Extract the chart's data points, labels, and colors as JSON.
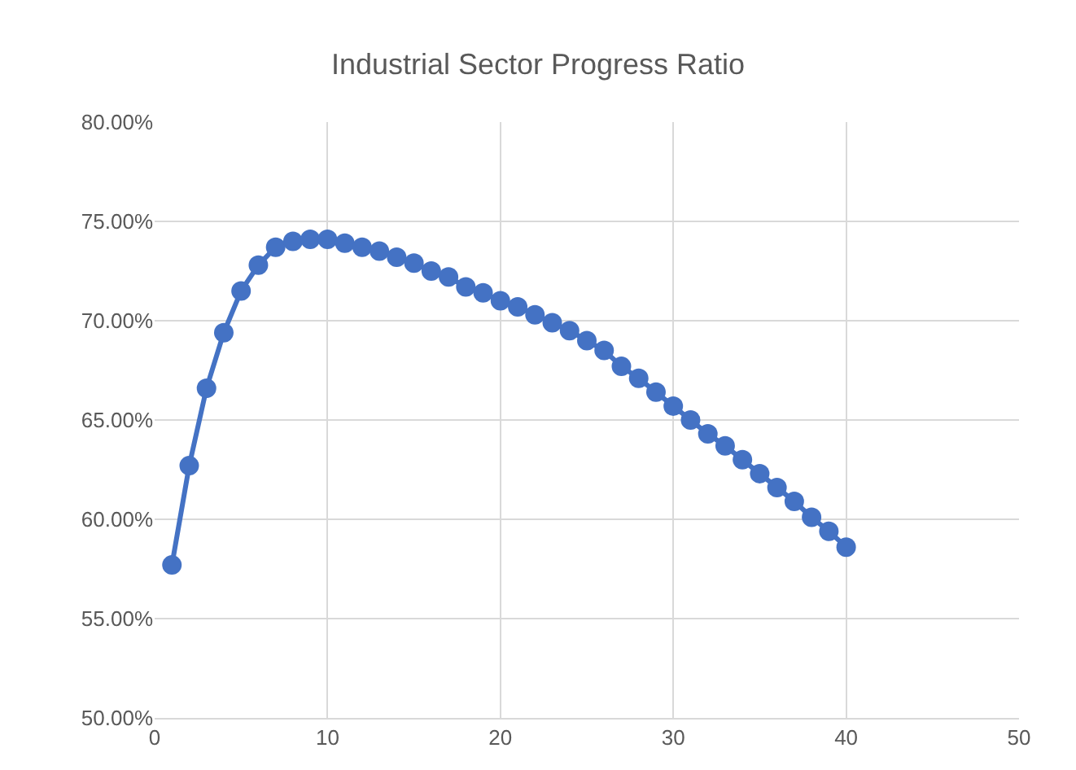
{
  "chart_data": {
    "type": "line",
    "title": "Industrial Sector Progress Ratio",
    "x": [
      1,
      2,
      3,
      4,
      5,
      6,
      7,
      8,
      9,
      10,
      11,
      12,
      13,
      14,
      15,
      16,
      17,
      18,
      19,
      20,
      21,
      22,
      23,
      24,
      25,
      26,
      27,
      28,
      29,
      30,
      31,
      32,
      33,
      34,
      35,
      36,
      37,
      38,
      39,
      40
    ],
    "series": [
      {
        "color": "#4472c4",
        "values": [
          0.577,
          0.627,
          0.666,
          0.694,
          0.715,
          0.728,
          0.737,
          0.74,
          0.741,
          0.741,
          0.739,
          0.737,
          0.735,
          0.732,
          0.729,
          0.725,
          0.722,
          0.717,
          0.714,
          0.71,
          0.707,
          0.703,
          0.699,
          0.695,
          0.69,
          0.685,
          0.677,
          0.671,
          0.664,
          0.657,
          0.65,
          0.643,
          0.637,
          0.63,
          0.623,
          0.616,
          0.609,
          0.601,
          0.594,
          0.586
        ]
      }
    ],
    "xlim": [
      0,
      50
    ],
    "xticks": [
      0,
      10,
      20,
      30,
      40,
      50
    ],
    "ylim": [
      0.5,
      0.8
    ],
    "yticks": [
      {
        "value": 0.5,
        "label": "50.00%"
      },
      {
        "value": 0.55,
        "label": "55.00%"
      },
      {
        "value": 0.6,
        "label": "60.00%"
      },
      {
        "value": 0.65,
        "label": "65.00%"
      },
      {
        "value": 0.7,
        "label": "70.00%"
      },
      {
        "value": 0.75,
        "label": "75.00%"
      },
      {
        "value": 0.8,
        "label": "80.00%"
      }
    ],
    "grid": true,
    "marker": "circle",
    "line_style": "solid",
    "legend": false
  }
}
